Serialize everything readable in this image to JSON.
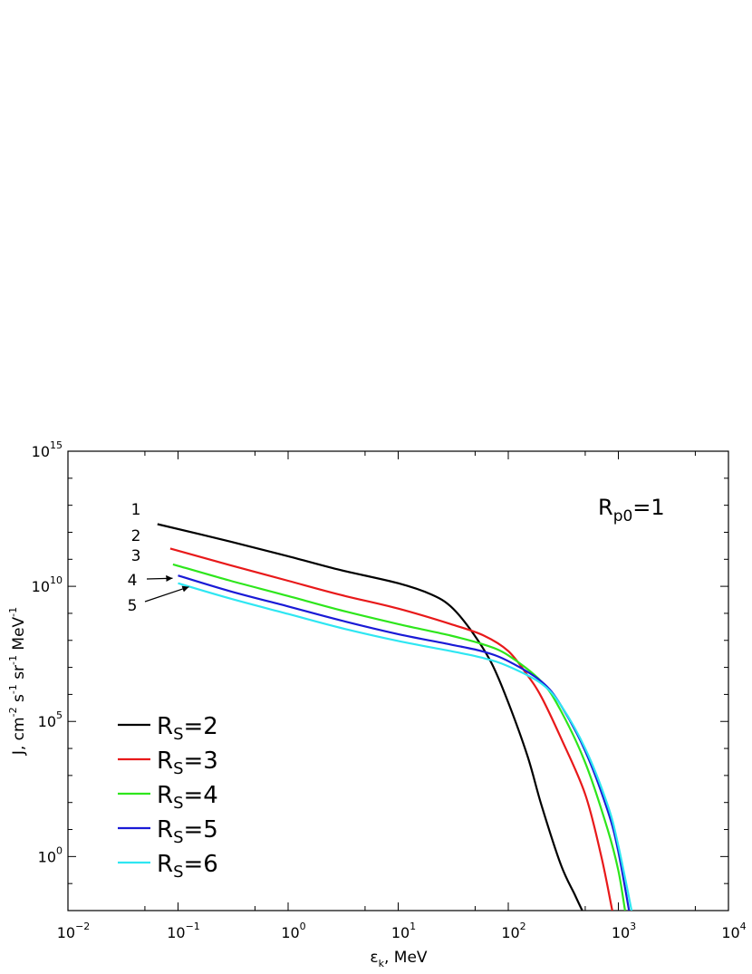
{
  "chart_data": {
    "type": "line",
    "xscale": "log",
    "yscale": "log",
    "xlim": [
      0.01,
      10000
    ],
    "ylim": [
      0.01,
      1000000000000000.0
    ],
    "xlabel": "εk, MeV",
    "xlabel_main": "ε",
    "xlabel_sub": "k",
    "xlabel_tail": ", MeV",
    "ylabel": "J, cm-2 s-1 sr-1 MeV-1",
    "ylabel_parts": [
      "J, cm",
      "-2",
      " s",
      "-1",
      " sr",
      "-1",
      " MeV",
      "-1"
    ],
    "annotation": "Rp0=1",
    "annotation_parts": [
      "R",
      "p0",
      "=1"
    ],
    "x_ticks": [
      {
        "base": "10",
        "exp": "−2",
        "value": 0.01
      },
      {
        "base": "10",
        "exp": "−1",
        "value": 0.1
      },
      {
        "base": "10",
        "exp": "0",
        "value": 1
      },
      {
        "base": "10",
        "exp": "1",
        "value": 10
      },
      {
        "base": "10",
        "exp": "2",
        "value": 100
      },
      {
        "base": "10",
        "exp": "3",
        "value": 1000
      },
      {
        "base": "10",
        "exp": "4",
        "value": 10000
      }
    ],
    "y_ticks": [
      {
        "base": "10",
        "exp": "0",
        "value": 1
      },
      {
        "base": "10",
        "exp": "5",
        "value": 100000
      },
      {
        "base": "10",
        "exp": "10",
        "value": 10000000000.0
      },
      {
        "base": "10",
        "exp": "15",
        "value": 1000000000000000.0
      }
    ],
    "legend_placement": "lower-left",
    "curve_labels": [
      {
        "text": "1",
        "series": 0
      },
      {
        "text": "2",
        "series": 1
      },
      {
        "text": "3",
        "series": 2
      },
      {
        "text": "4",
        "series": 3
      },
      {
        "text": "5",
        "series": 4
      }
    ],
    "series": [
      {
        "name": "RS=2",
        "name_main": "R",
        "name_sub": "S",
        "name_tail": "=2",
        "color": "#000000",
        "points": [
          [
            0.065,
            2000000000000.0
          ],
          [
            0.3,
            450000000000.0
          ],
          [
            1,
            130000000000.0
          ],
          [
            3,
            40000000000.0
          ],
          [
            10,
            13000000000.0
          ],
          [
            20,
            5000000000.0
          ],
          [
            30,
            1800000000.0
          ],
          [
            45,
            260000000.0
          ],
          [
            70,
            15000000.0
          ],
          [
            100,
            500000.0
          ],
          [
            150,
            5000.0
          ],
          [
            200,
            80
          ],
          [
            300,
            0.5
          ],
          [
            400,
            0.04
          ],
          [
            470,
            0.01
          ]
        ]
      },
      {
        "name": "RS=3",
        "name_main": "R",
        "name_sub": "S",
        "name_tail": "=3",
        "color": "#e8191a",
        "points": [
          [
            0.085,
            250000000000.0
          ],
          [
            0.3,
            60000000000.0
          ],
          [
            1,
            16000000000.0
          ],
          [
            3,
            4800000000.0
          ],
          [
            10,
            1500000000.0
          ],
          [
            30,
            400000000.0
          ],
          [
            60,
            150000000.0
          ],
          [
            100,
            40000000.0
          ],
          [
            150,
            5000000.0
          ],
          [
            200,
            800000.0
          ],
          [
            300,
            25000.0
          ],
          [
            500,
            200
          ],
          [
            700,
            1.0
          ],
          [
            880,
            0.01
          ]
        ]
      },
      {
        "name": "RS=4",
        "name_main": "R",
        "name_sub": "S",
        "name_tail": "=4",
        "color": "#2ee61c",
        "points": [
          [
            0.09,
            65000000000.0
          ],
          [
            0.3,
            16000000000.0
          ],
          [
            1,
            4400000000.0
          ],
          [
            3,
            1300000000.0
          ],
          [
            10,
            400000000.0
          ],
          [
            30,
            150000000.0
          ],
          [
            60,
            70000000.0
          ],
          [
            100,
            28000000.0
          ],
          [
            200,
            3000000.0
          ],
          [
            300,
            250000.0
          ],
          [
            500,
            3000.0
          ],
          [
            800,
            10
          ],
          [
            1000,
            0.3
          ],
          [
            1150,
            0.01
          ]
        ]
      },
      {
        "name": "RS=5",
        "name_main": "R",
        "name_sub": "S",
        "name_tail": "=5",
        "color": "#1a1ad6",
        "points": [
          [
            0.1,
            25000000000.0
          ],
          [
            0.3,
            6500000000.0
          ],
          [
            1,
            1800000000.0
          ],
          [
            3,
            550000000.0
          ],
          [
            10,
            170000000.0
          ],
          [
            30,
            70000000.0
          ],
          [
            60,
            38000000.0
          ],
          [
            100,
            17000000.0
          ],
          [
            200,
            3000000.0
          ],
          [
            300,
            400000.0
          ],
          [
            500,
            8000.0
          ],
          [
            800,
            50
          ],
          [
            1000,
            1.5
          ],
          [
            1250,
            0.01
          ]
        ]
      },
      {
        "name": "RS=6",
        "name_main": "R",
        "name_sub": "S",
        "name_tail": "=6",
        "color": "#2ee6f2",
        "points": [
          [
            0.1,
            13000000000.0
          ],
          [
            0.3,
            3500000000.0
          ],
          [
            1,
            950000000.0
          ],
          [
            3,
            290000000.0
          ],
          [
            10,
            95000000.0
          ],
          [
            30,
            40000000.0
          ],
          [
            60,
            22000000.0
          ],
          [
            100,
            11000000.0
          ],
          [
            200,
            2500000.0
          ],
          [
            300,
            400000.0
          ],
          [
            500,
            10000.0
          ],
          [
            800,
            80
          ],
          [
            1000,
            2.5
          ],
          [
            1320,
            0.01
          ]
        ]
      }
    ]
  }
}
